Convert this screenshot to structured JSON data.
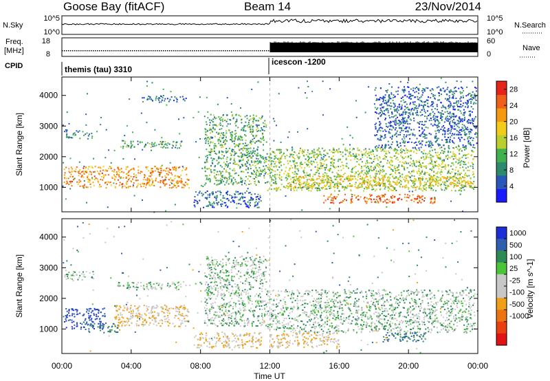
{
  "header": {
    "station": "Goose Bay (fitACF)",
    "beam": "Beam 14",
    "date": "23/Nov/2014"
  },
  "noise_panel": {
    "left_label": "N.Sky",
    "left_ticks": [
      "10^5",
      "10^0"
    ],
    "right_label": "N.Search",
    "right_ticks": [
      "10^5",
      "10^0"
    ]
  },
  "freq_panel": {
    "left_label_line1": "Freq.",
    "left_label_line2": "[MHz]",
    "left_ticks": [
      "18",
      "8"
    ],
    "right_label": "Nave",
    "right_ticks": [
      "60",
      "0"
    ]
  },
  "cpid_panel": {
    "label": "CPID",
    "segments": [
      {
        "name": "themis (tau) 3310",
        "start_hour": 0
      },
      {
        "name": "icescon -1200",
        "start_hour": 12
      }
    ]
  },
  "time_axis": {
    "label": "Time UT",
    "ticks": [
      "00:00",
      "04:00",
      "08:00",
      "12:00",
      "16:00",
      "20:00",
      "00:00"
    ],
    "range_hours": [
      0,
      24
    ]
  },
  "colors": {
    "power": [
      "#1a1aff",
      "#2a58b8",
      "#2e8a6e",
      "#43b050",
      "#b8cf2e",
      "#f2cc1a",
      "#f59a10",
      "#ef6018",
      "#e42418"
    ],
    "velocity": [
      "#1c2fd6",
      "#2f5fae",
      "#2c8a55",
      "#4cc43a",
      "#c8c8c8",
      "#c8c8c8",
      "#f0a016",
      "#ee7410",
      "#e84010",
      "#e01414"
    ]
  },
  "chart_data": [
    {
      "type": "heatmap",
      "panel": "power",
      "ylabel": "Slant Range [km]",
      "yticks": [
        1000,
        2000,
        3000,
        4000
      ],
      "ylim": [
        200,
        4600
      ],
      "xlim": [
        0,
        24
      ],
      "colorbar_label": "Power [dB]",
      "colorbar_ticks": [
        4,
        8,
        12,
        16,
        20,
        24,
        28
      ],
      "colorbar_range": [
        0,
        30
      ],
      "bands": [
        {
          "t0": 0.1,
          "t1": 7.3,
          "r0": 1000,
          "r1": 1700,
          "v": 22
        },
        {
          "t0": 0.1,
          "t1": 1.8,
          "r0": 2600,
          "r1": 2900,
          "v": 8
        },
        {
          "t0": 3.2,
          "t1": 6.9,
          "r0": 2300,
          "r1": 2550,
          "v": 10
        },
        {
          "t0": 4.6,
          "t1": 7.2,
          "r0": 3800,
          "r1": 4000,
          "v": 6
        },
        {
          "t0": 7.6,
          "t1": 11.5,
          "r0": 350,
          "r1": 900,
          "v": 6
        },
        {
          "t0": 8.2,
          "t1": 11.8,
          "r0": 1100,
          "r1": 3400,
          "v": 11
        },
        {
          "t0": 11.8,
          "t1": 23.8,
          "r0": 900,
          "r1": 2300,
          "v": 14
        },
        {
          "t0": 13.0,
          "t1": 23.8,
          "r0": 1000,
          "r1": 1400,
          "v": 18
        },
        {
          "t0": 15.0,
          "t1": 21.5,
          "r0": 500,
          "r1": 800,
          "v": 25
        },
        {
          "t0": 18.0,
          "t1": 23.9,
          "r0": 2300,
          "r1": 4300,
          "v": 6
        }
      ]
    },
    {
      "type": "heatmap",
      "panel": "velocity",
      "ylabel": "Slant Range [km]",
      "yticks": [
        1000,
        2000,
        3000,
        4000
      ],
      "ylim": [
        200,
        4600
      ],
      "xlim": [
        0,
        24
      ],
      "colorbar_label": "Velocity [m s^-1]",
      "colorbar_ticks": [
        "1000",
        "500",
        "100",
        "25",
        "-25",
        "-100",
        "-500",
        "-1000"
      ],
      "bands": [
        {
          "t0": 0.1,
          "t1": 2.5,
          "r0": 1000,
          "r1": 1700,
          "v": 500
        },
        {
          "t0": 1.5,
          "t1": 3.2,
          "r0": 900,
          "r1": 1200,
          "v": 100
        },
        {
          "t0": 3.0,
          "t1": 7.3,
          "r0": 1100,
          "r1": 1800,
          "v": -100
        },
        {
          "t0": 0.1,
          "t1": 1.8,
          "r0": 2600,
          "r1": 2900,
          "v": 0
        },
        {
          "t0": 3.2,
          "t1": 6.9,
          "r0": 2300,
          "r1": 2550,
          "v": 0
        },
        {
          "t0": 7.6,
          "t1": 11.5,
          "r0": 400,
          "r1": 900,
          "v": -100
        },
        {
          "t0": 8.2,
          "t1": 11.8,
          "r0": 1100,
          "r1": 3400,
          "v": 0
        },
        {
          "t0": 11.8,
          "t1": 23.8,
          "r0": 900,
          "r1": 2300,
          "v": 0
        },
        {
          "t0": 18.5,
          "t1": 21.0,
          "r0": 600,
          "r1": 900,
          "v": 100
        },
        {
          "t0": 12.0,
          "t1": 16.0,
          "r0": 400,
          "r1": 900,
          "v": -100
        }
      ]
    }
  ]
}
